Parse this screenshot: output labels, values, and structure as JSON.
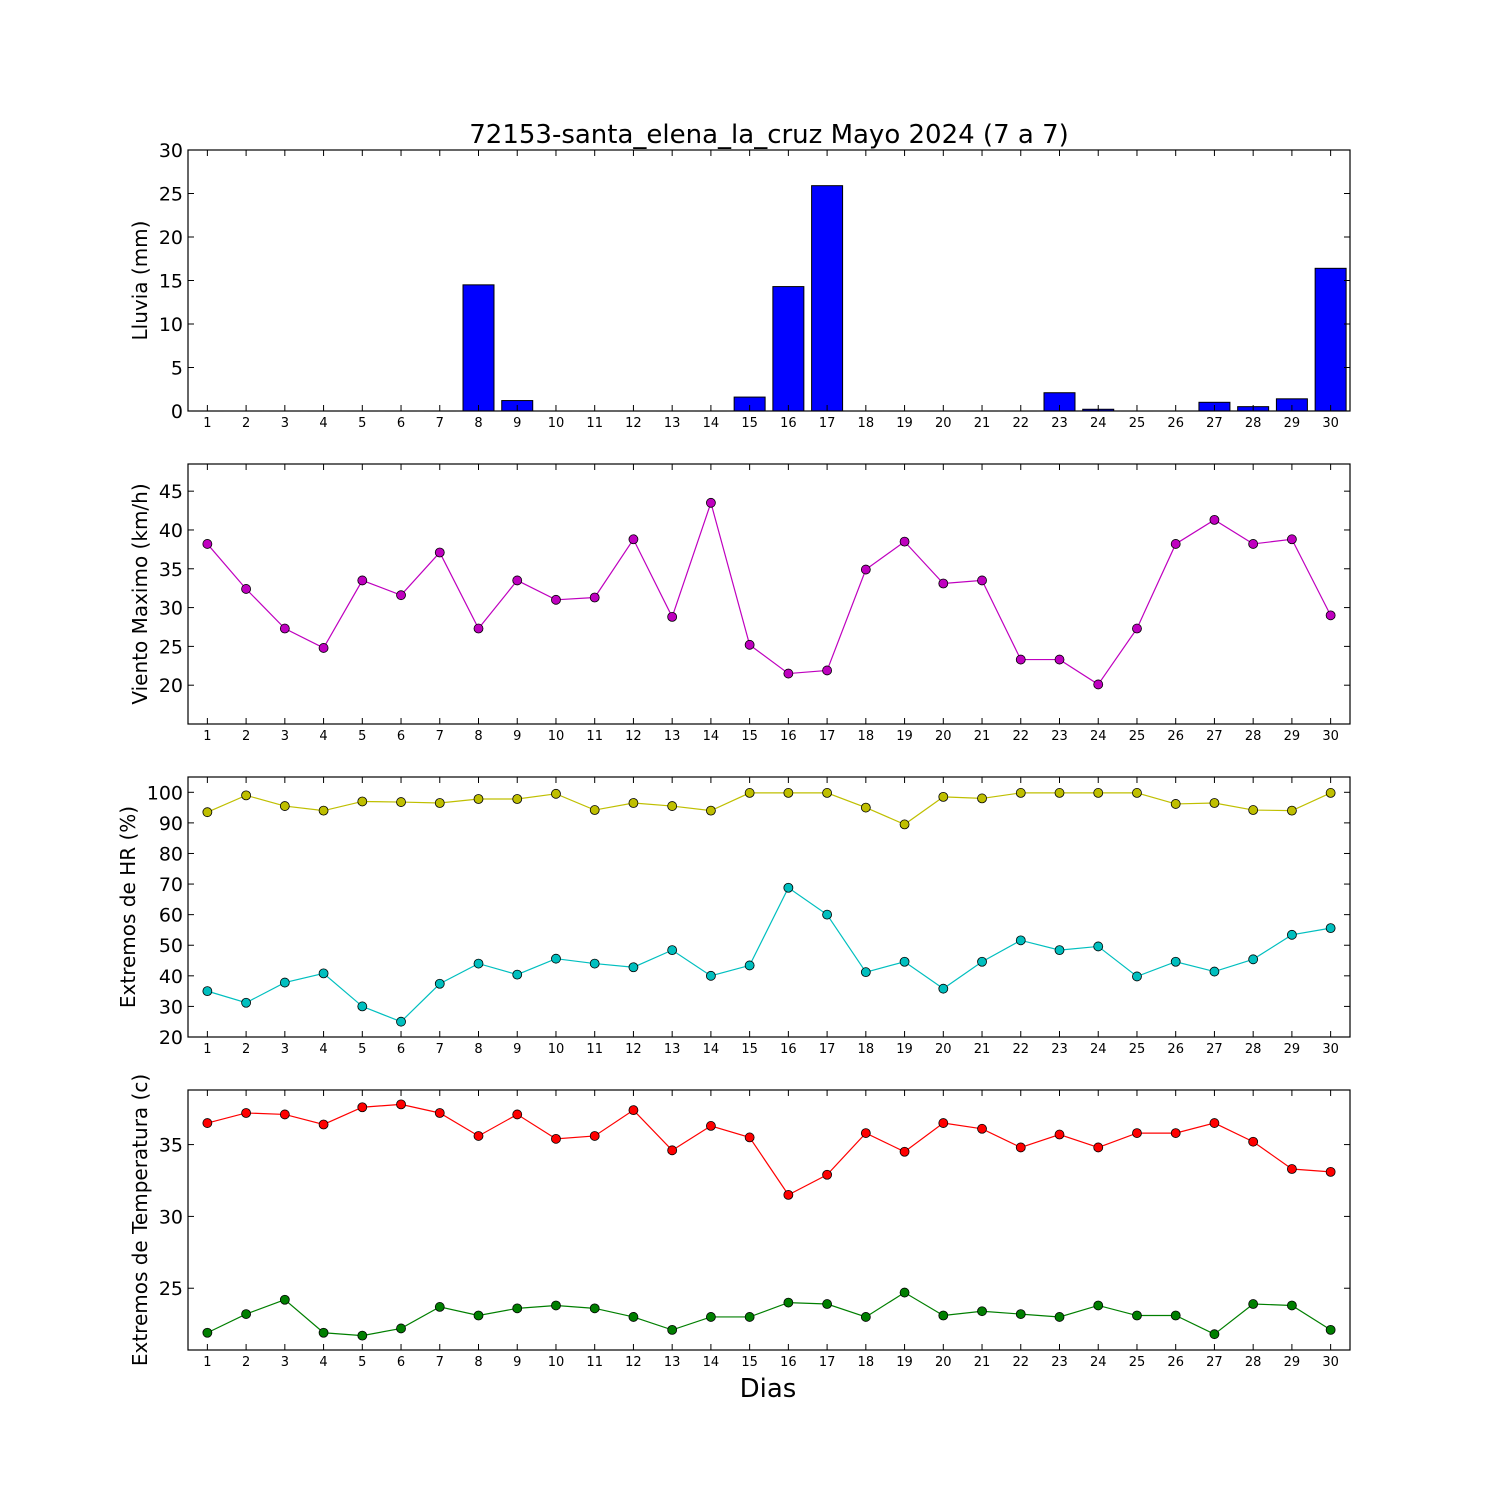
{
  "title": "72153-santa_elena_la_cruz Mayo 2024  (7 a 7)",
  "xlabel": "Dias",
  "days": [
    1,
    2,
    3,
    4,
    5,
    6,
    7,
    8,
    9,
    10,
    11,
    12,
    13,
    14,
    15,
    16,
    17,
    18,
    19,
    20,
    21,
    22,
    23,
    24,
    25,
    26,
    27,
    28,
    29,
    30
  ],
  "chart_data": [
    {
      "type": "bar",
      "ylabel": "Lluvia (mm)",
      "ylim": [
        0,
        30
      ],
      "yticks": [
        0,
        5,
        10,
        15,
        20,
        25,
        30
      ],
      "series": [
        {
          "color": "#0000ff",
          "values": [
            0,
            0,
            0,
            0,
            0,
            0,
            0,
            14.5,
            1.2,
            0,
            0,
            0,
            0,
            0,
            1.6,
            14.3,
            25.9,
            0,
            0,
            0,
            0,
            0,
            2.1,
            0.2,
            0,
            0,
            1.0,
            0.5,
            1.4,
            16.4
          ]
        }
      ]
    },
    {
      "type": "line",
      "ylabel": "Viento Maximo (km/h)",
      "ylim": [
        15,
        48.5
      ],
      "yticks": [
        20,
        25,
        30,
        35,
        40,
        45
      ],
      "series": [
        {
          "color": "#bf00bf",
          "values": [
            38.2,
            32.4,
            27.3,
            24.8,
            33.5,
            31.6,
            37.1,
            27.3,
            33.5,
            31.0,
            31.3,
            38.8,
            28.8,
            43.5,
            25.2,
            21.5,
            21.9,
            34.9,
            38.5,
            33.1,
            33.5,
            23.3,
            23.3,
            20.1,
            27.3,
            38.2,
            41.3,
            38.2,
            38.8,
            29.0
          ]
        }
      ]
    },
    {
      "type": "line",
      "ylabel": "Extremos de HR (%)",
      "ylim": [
        20,
        105
      ],
      "yticks": [
        20,
        30,
        40,
        50,
        60,
        70,
        80,
        90,
        100
      ],
      "series": [
        {
          "color": "#bfbf00",
          "values": [
            93.5,
            99,
            95.5,
            94,
            97,
            96.8,
            96.5,
            97.8,
            97.8,
            99.5,
            94.2,
            96.5,
            95.5,
            94,
            99.8,
            99.8,
            99.8,
            95,
            89.5,
            98.5,
            98,
            99.8,
            99.8,
            99.8,
            99.8,
            96.2,
            96.5,
            94.2,
            94,
            99.8
          ]
        },
        {
          "color": "#00bfbf",
          "values": [
            35,
            31.2,
            37.8,
            40.8,
            30,
            25,
            37.4,
            44,
            40.4,
            45.6,
            44,
            42.8,
            48.4,
            40,
            43.4,
            68.8,
            60,
            41.2,
            44.6,
            35.8,
            44.6,
            51.6,
            48.4,
            49.6,
            39.8,
            44.6,
            41.4,
            45.4,
            53.4,
            55.6
          ]
        }
      ]
    },
    {
      "type": "line",
      "ylabel": "Extremos de Temperatura (c)",
      "ylim": [
        20.7,
        38.8
      ],
      "yticks": [
        25,
        30,
        35
      ],
      "series": [
        {
          "color": "#ff0000",
          "values": [
            36.5,
            37.2,
            37.1,
            36.4,
            37.6,
            37.8,
            37.2,
            35.6,
            37.1,
            35.4,
            35.6,
            37.4,
            34.6,
            36.3,
            35.5,
            31.5,
            32.9,
            35.8,
            34.5,
            36.5,
            36.1,
            34.8,
            35.7,
            34.8,
            35.8,
            35.8,
            36.5,
            35.2,
            33.3,
            33.1
          ]
        },
        {
          "color": "#007f00",
          "values": [
            21.9,
            23.2,
            24.2,
            21.9,
            21.7,
            22.2,
            23.7,
            23.1,
            23.6,
            23.8,
            23.6,
            23.0,
            22.1,
            23.0,
            23.0,
            24.0,
            23.9,
            23.0,
            24.7,
            23.1,
            23.4,
            23.2,
            23.0,
            23.8,
            23.1,
            23.1,
            21.8,
            23.9,
            23.8,
            22.1
          ]
        }
      ]
    }
  ]
}
